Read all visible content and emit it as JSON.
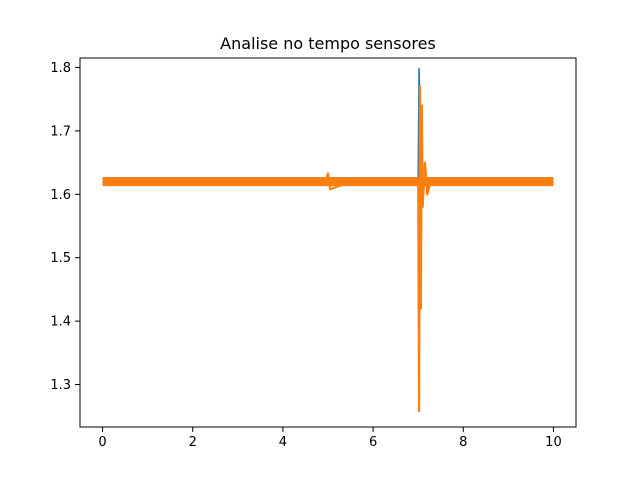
{
  "chart_data": {
    "type": "line",
    "title": "Analise no tempo sensores",
    "xlabel": "",
    "ylabel": "",
    "xlim": [
      -0.5,
      10.5
    ],
    "ylim": [
      1.233,
      1.815
    ],
    "xticks": [
      0,
      2,
      4,
      6,
      8,
      10
    ],
    "yticks": [
      1.3,
      1.4,
      1.5,
      1.6,
      1.7,
      1.8
    ],
    "xtick_labels": [
      "0",
      "2",
      "4",
      "6",
      "8",
      "10"
    ],
    "ytick_labels": [
      "1.3",
      "1.4",
      "1.5",
      "1.6",
      "1.7",
      "1.8"
    ],
    "grid": false,
    "legend": "none",
    "series": [
      {
        "color": "#1f77b4",
        "x": [
          0,
          0.5,
          1,
          1.5,
          2,
          2.5,
          3,
          3.5,
          4,
          4.5,
          5,
          5.5,
          6,
          6.5,
          6.95,
          7.0,
          7.02,
          7.04,
          7.06,
          7.08,
          7.1,
          7.15,
          7.2,
          7.3,
          7.5,
          8,
          8.5,
          9,
          9.5,
          10
        ],
        "y": [
          1.62,
          1.62,
          1.62,
          1.62,
          1.62,
          1.62,
          1.62,
          1.62,
          1.62,
          1.62,
          1.62,
          1.62,
          1.62,
          1.62,
          1.62,
          1.62,
          1.798,
          1.72,
          1.56,
          1.66,
          1.6,
          1.635,
          1.61,
          1.622,
          1.62,
          1.62,
          1.62,
          1.62,
          1.62,
          1.62
        ]
      },
      {
        "color": "#ff7f0e",
        "x": [
          0,
          0.5,
          1,
          1.5,
          2,
          2.5,
          3,
          3.5,
          4,
          4.5,
          4.95,
          5.0,
          5.05,
          5.5,
          6,
          6.5,
          6.95,
          7.0,
          7.02,
          7.04,
          7.06,
          7.08,
          7.1,
          7.15,
          7.2,
          7.3,
          7.5,
          8,
          8.5,
          9,
          9.5,
          10
        ],
        "y": [
          1.62,
          1.62,
          1.62,
          1.62,
          1.62,
          1.62,
          1.62,
          1.62,
          1.62,
          1.62,
          1.62,
          1.633,
          1.608,
          1.62,
          1.62,
          1.62,
          1.62,
          1.62,
          1.258,
          1.77,
          1.42,
          1.74,
          1.58,
          1.65,
          1.6,
          1.625,
          1.62,
          1.62,
          1.62,
          1.62,
          1.62,
          1.62
        ]
      }
    ]
  }
}
